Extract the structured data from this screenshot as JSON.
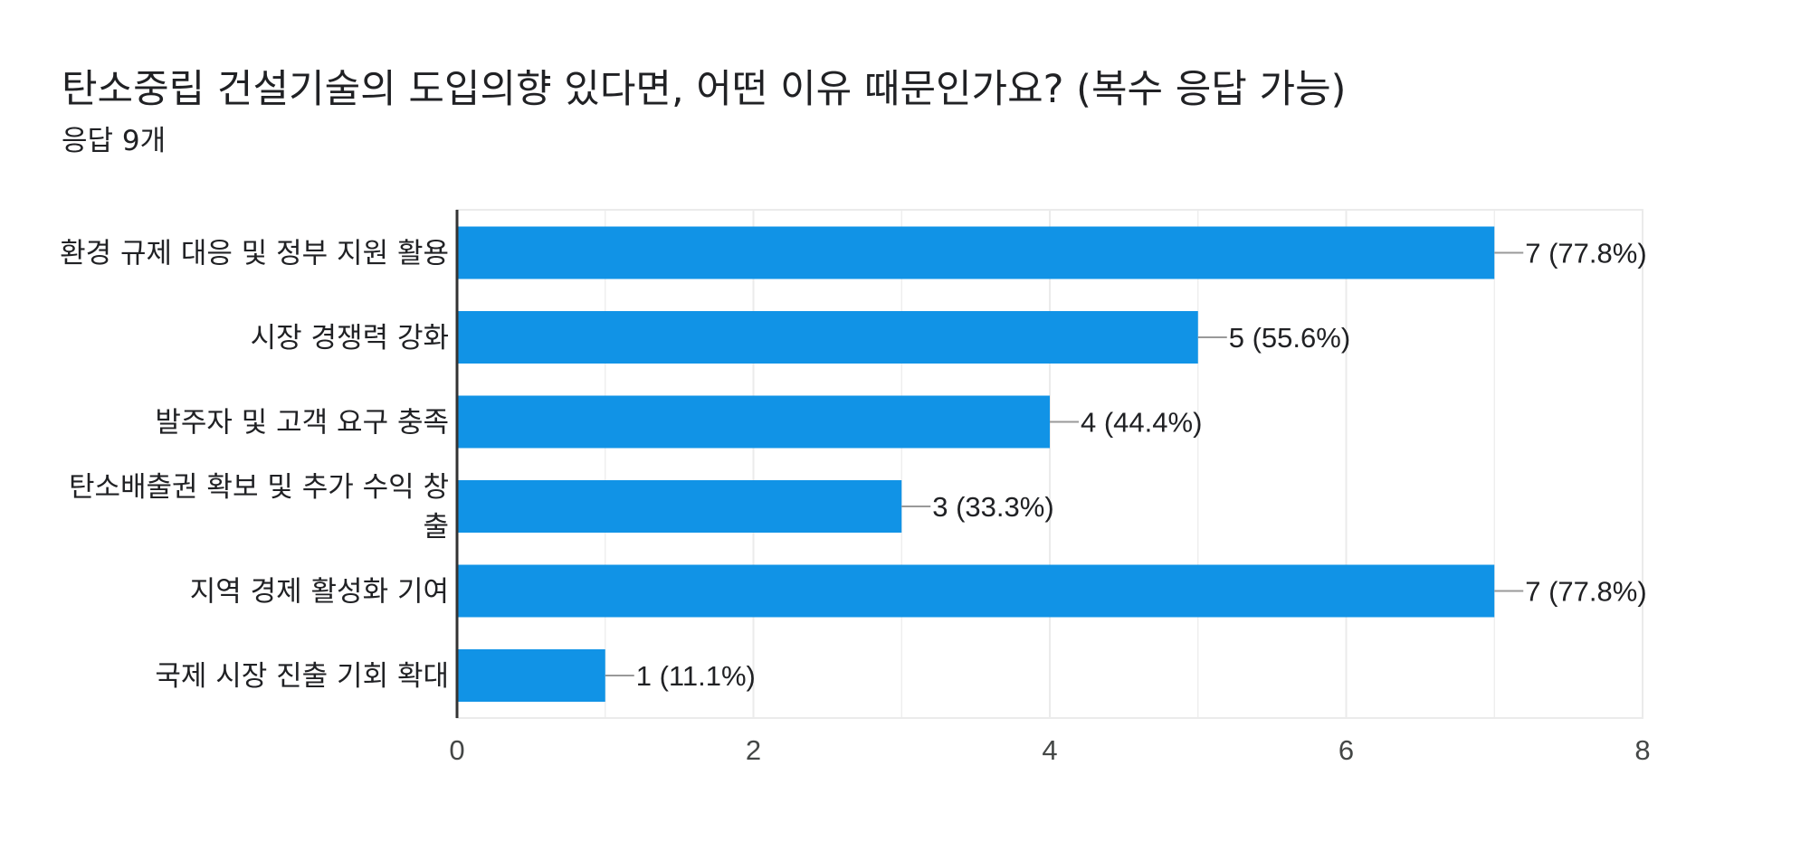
{
  "title": "탄소중립 건설기술의 도입의향 있다면, 어떤 이유 때문인가요? (복수 응답 가능)",
  "subtitle": "응답 9개",
  "colors": {
    "bar": "#1193e6",
    "grid": "#ebebeb",
    "axis": "#333333",
    "leader": "#999999"
  },
  "chart_data": {
    "type": "bar",
    "orientation": "horizontal",
    "categories": [
      [
        "환경 규제 대응 및 정부 지원 활용"
      ],
      [
        "시장 경쟁력 강화"
      ],
      [
        "발주자 및 고객 요구 충족"
      ],
      [
        "탄소배출권 확보 및 추가 수익 창",
        "출"
      ],
      [
        "지역 경제 활성화 기여"
      ],
      [
        "국제 시장 진출 기회 확대"
      ]
    ],
    "values": [
      7,
      5,
      4,
      3,
      7,
      1
    ],
    "data_labels": [
      "7 (77.8%)",
      "5 (55.6%)",
      "4 (44.4%)",
      "3 (33.3%)",
      "7 (77.8%)",
      "1 (11.1%)"
    ],
    "xlim": [
      0,
      8
    ],
    "xticks": [
      0,
      2,
      4,
      6,
      8
    ],
    "xtick_labels": [
      "0",
      "2",
      "4",
      "6",
      "8"
    ],
    "grid": true,
    "legend": "none"
  }
}
